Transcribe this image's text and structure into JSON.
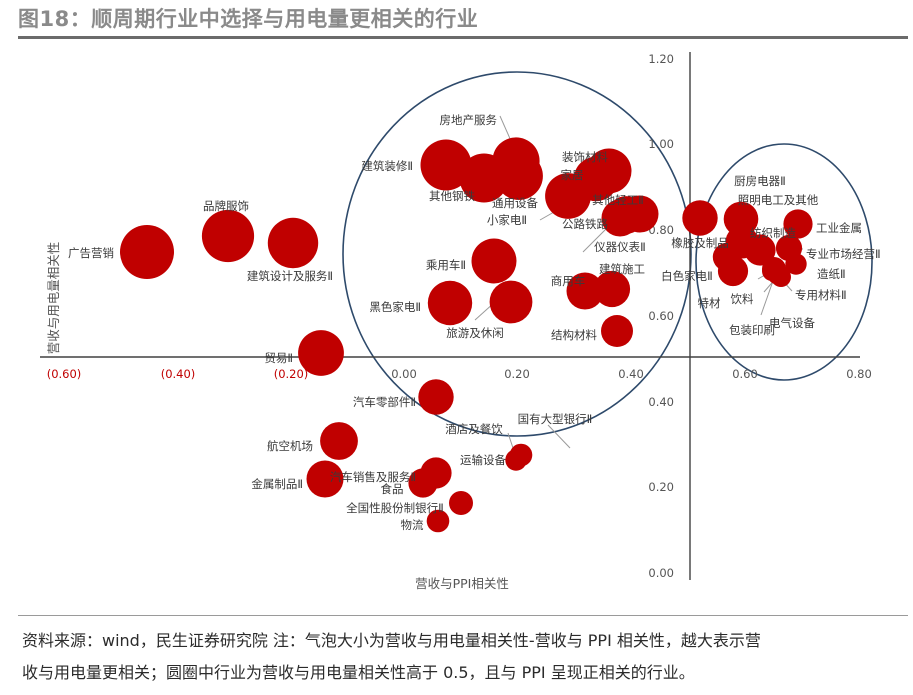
{
  "title": "图18：顺周期行业中选择与用电量更相关的行业",
  "notes": {
    "line1": "资料来源：wind，民生证券研究院 注：气泡大小为营收与用电量相关性-营收与 PPI 相关性，越大表示营",
    "line2": "收与用电量更相关；圆圈中行业为营收与用电量相关性高于 0.5，且与 PPI 呈现正相关的行业。"
  },
  "chart_data": {
    "type": "scatter",
    "xlabel": "营收与PPI相关性",
    "ylabel": "营收与用电量相关性",
    "xlim": [
      -0.6,
      0.8
    ],
    "ylim": [
      0.0,
      1.2
    ],
    "x_ticks": [
      "(0.60)",
      "(0.40)",
      "(0.20)",
      "0.00",
      "0.20",
      "0.40",
      "0.60",
      "0.80"
    ],
    "y_ticks": [
      "0.00",
      "0.20",
      "0.40",
      "0.60",
      "0.80",
      "1.00",
      "1.20"
    ],
    "grid": false,
    "legend": "none",
    "bubble_color": "#C00000",
    "axis_color": "#404040",
    "circle_color": "#2E4A6B",
    "negative_tick_color": "#C00000",
    "points": [
      {
        "name": "广告营销",
        "x": -0.455,
        "y": 0.745,
        "size": 0.92
      },
      {
        "name": "品牌服饰",
        "x": -0.31,
        "y": 0.79,
        "size": 0.86
      },
      {
        "name": "建筑设计及服务Ⅱ",
        "x": -0.195,
        "y": 0.77,
        "size": 0.8
      },
      {
        "name": "贸易Ⅱ",
        "x": -0.145,
        "y": 0.51,
        "size": 0.66
      },
      {
        "name": "建筑装修Ⅱ",
        "x": 0.075,
        "y": 0.96,
        "size": 0.82
      },
      {
        "name": "其他钢铁",
        "x": 0.145,
        "y": 0.925,
        "size": 0.76
      },
      {
        "name": "房地产服务",
        "x": 0.2,
        "y": 0.965,
        "size": 0.7
      },
      {
        "name": "通用设备",
        "x": 0.205,
        "y": 0.93,
        "size": 0.72
      },
      {
        "name": "小家电Ⅱ",
        "x": 0.29,
        "y": 0.87,
        "size": 0.66
      },
      {
        "name": "装饰材料",
        "x": 0.36,
        "y": 0.945,
        "size": 0.64
      },
      {
        "name": "家居",
        "x": 0.335,
        "y": 0.92,
        "size": 0.62
      },
      {
        "name": "其他轻工Ⅱ",
        "x": 0.39,
        "y": 0.845,
        "size": 0.5
      },
      {
        "name": "公路铁路",
        "x": 0.385,
        "y": 0.835,
        "size": 0.48
      },
      {
        "name": "仪器仪表Ⅱ",
        "x": 0.42,
        "y": 0.84,
        "size": 0.48
      },
      {
        "name": "乘用车Ⅱ",
        "x": 0.16,
        "y": 0.725,
        "size": 0.64
      },
      {
        "name": "黑色家电Ⅱ",
        "x": 0.08,
        "y": 0.63,
        "size": 0.62
      },
      {
        "name": "旅游及休闲",
        "x": 0.185,
        "y": 0.63,
        "size": 0.58
      },
      {
        "name": "商用车",
        "x": 0.325,
        "y": 0.655,
        "size": 0.48
      },
      {
        "name": "建筑施工",
        "x": 0.375,
        "y": 0.66,
        "size": 0.46
      },
      {
        "name": "结构材料",
        "x": 0.375,
        "y": 0.565,
        "size": 0.36
      },
      {
        "name": "厨房电器Ⅱ",
        "x": 0.525,
        "y": 0.83,
        "size": 0.44
      },
      {
        "name": "照明电工及其他",
        "x": 0.585,
        "y": 0.83,
        "size": 0.42
      },
      {
        "name": "纺织制造",
        "x": 0.6,
        "y": 0.775,
        "size": 0.38
      },
      {
        "name": "橡胶及制品",
        "x": 0.575,
        "y": 0.795,
        "size": 0.34
      },
      {
        "name": "白色家电Ⅱ",
        "x": 0.575,
        "y": 0.715,
        "size": 0.32
      },
      {
        "name": "特材",
        "x": 0.56,
        "y": 0.7,
        "size": 0.28
      },
      {
        "name": "工业金属",
        "x": 0.69,
        "y": 0.815,
        "size": 0.3
      },
      {
        "name": "专业市场经营Ⅱ",
        "x": 0.675,
        "y": 0.755,
        "size": 0.24
      },
      {
        "name": "造纸Ⅱ",
        "x": 0.69,
        "y": 0.72,
        "size": 0.16
      },
      {
        "name": "饮料",
        "x": 0.645,
        "y": 0.7,
        "size": 0.2
      },
      {
        "name": "专用材料Ⅱ",
        "x": 0.655,
        "y": 0.69,
        "size": 0.16
      },
      {
        "name": "电气设备",
        "x": 0.66,
        "y": 0.68,
        "size": 0.14
      },
      {
        "name": "包装印刷",
        "x": 0.645,
        "y": 0.685,
        "size": 0.14
      },
      {
        "name": "汽车零部件Ⅱ",
        "x": 0.06,
        "y": 0.41,
        "size": 0.44
      },
      {
        "name": "航空机场",
        "x": -0.115,
        "y": 0.31,
        "size": 0.5
      },
      {
        "name": "金属制品Ⅱ",
        "x": -0.14,
        "y": 0.22,
        "size": 0.48
      },
      {
        "name": "汽车销售及服务Ⅱ",
        "x": 0.055,
        "y": 0.235,
        "size": 0.34
      },
      {
        "name": "食品",
        "x": 0.035,
        "y": 0.215,
        "size": 0.3
      },
      {
        "name": "全国性股份制银行Ⅱ",
        "x": 0.1,
        "y": 0.165,
        "size": 0.2
      },
      {
        "name": "物流",
        "x": 0.06,
        "y": 0.125,
        "size": 0.18
      },
      {
        "name": "国有大型银行Ⅱ",
        "x": 0.21,
        "y": 0.275,
        "size": 0.18
      },
      {
        "name": "酒店及餐饮",
        "x": 0.2,
        "y": 0.265,
        "size": 0.16
      },
      {
        "name": "运输设备",
        "x": 0.205,
        "y": 0.27,
        "size": 0.14
      }
    ],
    "circles": [
      "圆圈1",
      "圆圈2"
    ]
  }
}
